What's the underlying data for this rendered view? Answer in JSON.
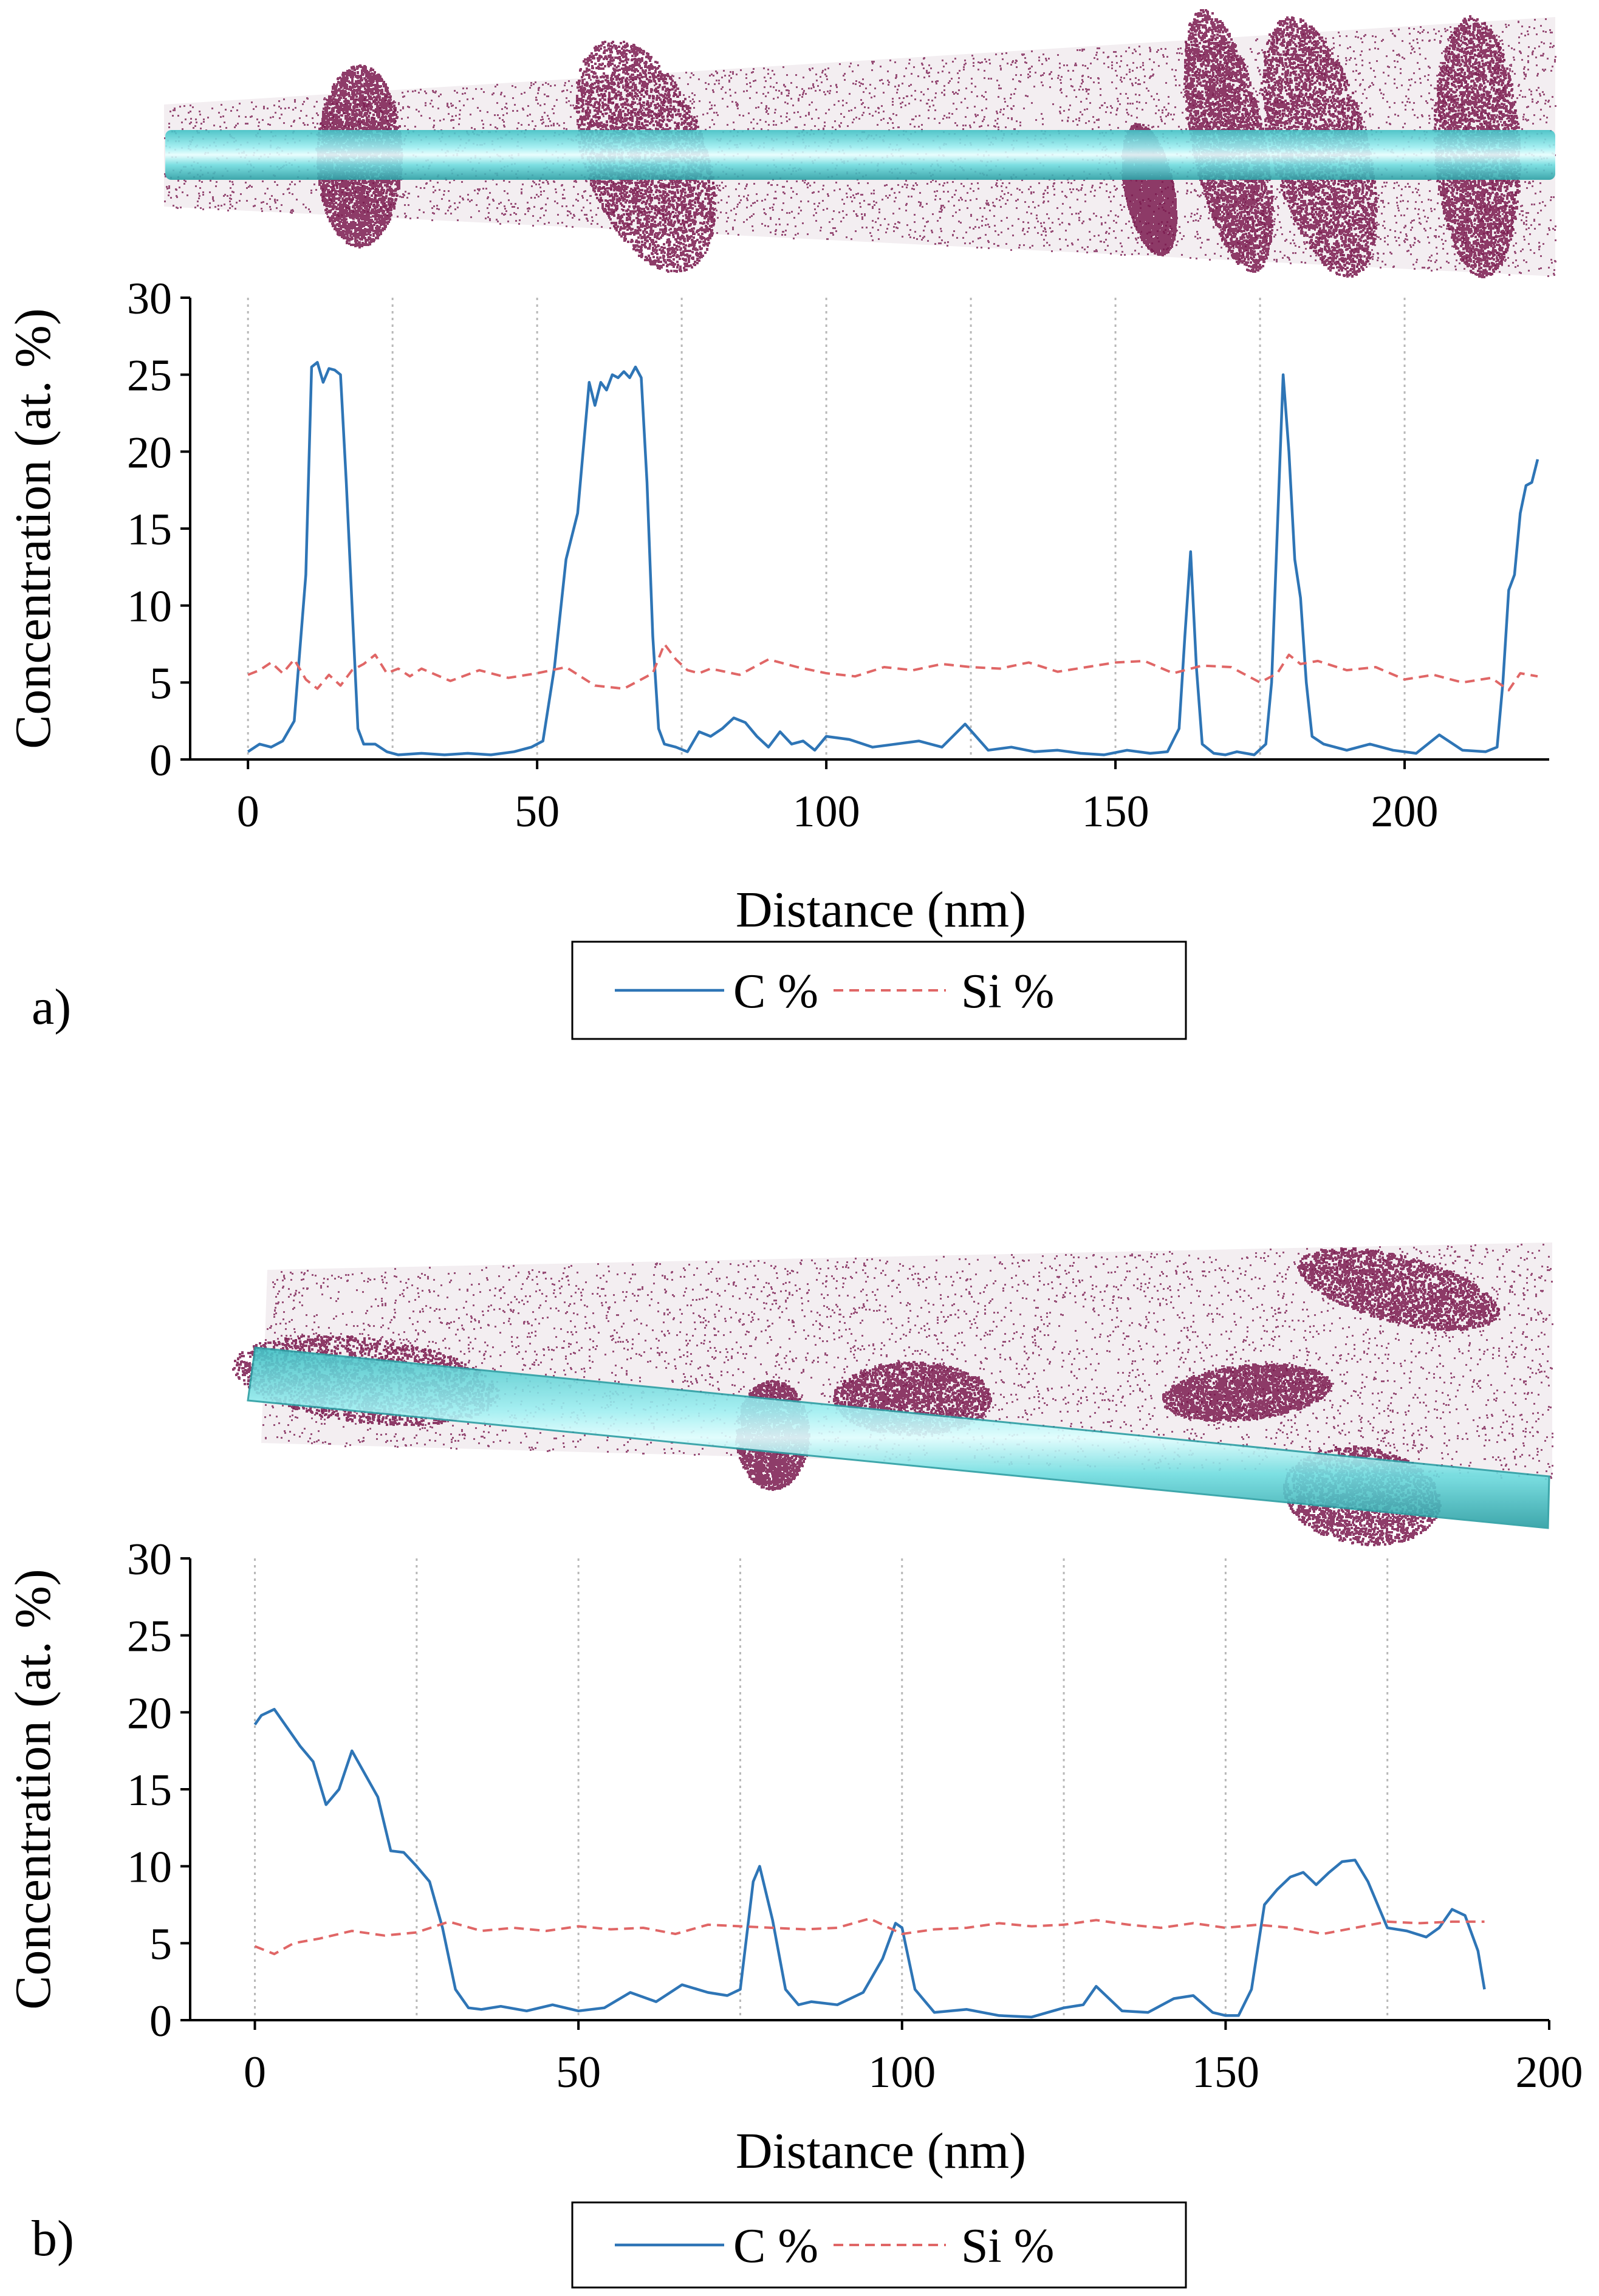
{
  "figure": {
    "panels": [
      "a)",
      "b)"
    ]
  },
  "colors": {
    "c_line": "#2e75b6",
    "si_line": "#e06666",
    "atoms": "#7a1a4f",
    "cylinder": "#5fdcdc"
  },
  "chart_data": [
    {
      "type": "line",
      "panel_label": "a)",
      "xlabel": "Distance (nm)",
      "ylabel": "Concentration (at. %)",
      "xlim": [
        -10,
        225
      ],
      "ylim": [
        0,
        30
      ],
      "xticks": [
        0,
        50,
        100,
        150,
        200
      ],
      "yticks": [
        0,
        5,
        10,
        15,
        20,
        25,
        30
      ],
      "xgrid": [
        0,
        25,
        50,
        75,
        100,
        125,
        150,
        175,
        200
      ],
      "legend": [
        "C %",
        "Si %"
      ],
      "series": [
        {
          "name": "C %",
          "style": "solid",
          "x": [
            0,
            2,
            4,
            6,
            8,
            10,
            11,
            12,
            13,
            14,
            15,
            16,
            17,
            18,
            19,
            20,
            22,
            24,
            26,
            30,
            34,
            38,
            42,
            46,
            49,
            51,
            53,
            55,
            57,
            59,
            60,
            61,
            62,
            63,
            64,
            65,
            66,
            67,
            68,
            69,
            70,
            71,
            72,
            74,
            76,
            78,
            80,
            82,
            84,
            86,
            88,
            90,
            92,
            94,
            96,
            98,
            100,
            104,
            108,
            112,
            116,
            120,
            124,
            128,
            132,
            136,
            140,
            144,
            148,
            152,
            156,
            159,
            161,
            162,
            163,
            164,
            165,
            167,
            169,
            171,
            174,
            176,
            177,
            178,
            179,
            180,
            181,
            182,
            183,
            184,
            186,
            190,
            194,
            198,
            202,
            206,
            210,
            214,
            216,
            217,
            218,
            219,
            220,
            221,
            222,
            223
          ],
          "values": [
            0.5,
            1.0,
            0.8,
            1.2,
            2.5,
            12.0,
            25.5,
            25.8,
            24.5,
            25.4,
            25.3,
            25.0,
            18.0,
            10.0,
            2.0,
            1.0,
            1.0,
            0.5,
            0.3,
            0.4,
            0.3,
            0.4,
            0.3,
            0.5,
            0.8,
            1.2,
            6.0,
            13.0,
            16.0,
            24.5,
            23.0,
            24.5,
            24.0,
            25.0,
            24.8,
            25.2,
            24.8,
            25.5,
            24.8,
            18.0,
            8.0,
            2.0,
            1.0,
            0.8,
            0.5,
            1.8,
            1.5,
            2.0,
            2.7,
            2.4,
            1.5,
            0.8,
            1.8,
            1.0,
            1.2,
            0.6,
            1.5,
            1.3,
            0.8,
            1.0,
            1.2,
            0.8,
            2.3,
            0.6,
            0.8,
            0.5,
            0.6,
            0.4,
            0.3,
            0.6,
            0.4,
            0.5,
            2.0,
            8.0,
            13.5,
            6.0,
            1.0,
            0.4,
            0.3,
            0.5,
            0.3,
            1.0,
            5.0,
            15.0,
            25.0,
            20.0,
            13.0,
            10.5,
            5.0,
            1.5,
            1.0,
            0.6,
            1.0,
            0.6,
            0.4,
            1.6,
            0.6,
            0.5,
            0.8,
            5.0,
            11.0,
            12.0,
            16.0,
            17.8,
            18.0,
            19.5
          ]
        },
        {
          "name": "Si %",
          "style": "dashed",
          "x": [
            0,
            2,
            4,
            6,
            8,
            10,
            12,
            14,
            16,
            18,
            20,
            22,
            24,
            26,
            28,
            30,
            35,
            40,
            45,
            50,
            55,
            60,
            65,
            68,
            70,
            72,
            74,
            76,
            78,
            80,
            85,
            90,
            95,
            100,
            105,
            110,
            115,
            120,
            125,
            130,
            135,
            140,
            145,
            150,
            155,
            160,
            165,
            170,
            175,
            178,
            180,
            182,
            185,
            190,
            195,
            200,
            205,
            210,
            215,
            218,
            220,
            223
          ],
          "values": [
            5.5,
            5.8,
            6.3,
            5.6,
            6.5,
            5.2,
            4.6,
            5.5,
            4.8,
            5.8,
            6.2,
            6.8,
            5.6,
            5.9,
            5.4,
            5.9,
            5.1,
            5.8,
            5.3,
            5.6,
            6.0,
            4.8,
            4.6,
            5.2,
            5.6,
            7.5,
            6.5,
            5.8,
            5.6,
            5.9,
            5.5,
            6.5,
            6.0,
            5.6,
            5.4,
            6.0,
            5.8,
            6.2,
            6.0,
            5.9,
            6.3,
            5.7,
            6.0,
            6.3,
            6.4,
            5.6,
            6.1,
            6.0,
            5.0,
            5.6,
            6.8,
            6.2,
            6.4,
            5.8,
            6.0,
            5.2,
            5.5,
            5.0,
            5.3,
            4.5,
            5.6,
            5.4
          ]
        }
      ]
    },
    {
      "type": "line",
      "panel_label": "b)",
      "xlabel": "Distance (nm)",
      "ylabel": "Concentration (at. %)",
      "xlim": [
        -10,
        200
      ],
      "ylim": [
        0,
        30
      ],
      "xticks": [
        0,
        50,
        100,
        150,
        200
      ],
      "yticks": [
        0,
        5,
        10,
        15,
        20,
        25,
        30
      ],
      "xgrid": [
        0,
        25,
        50,
        75,
        100,
        125,
        150,
        175
      ],
      "legend": [
        "C %",
        "Si %"
      ],
      "series": [
        {
          "name": "C %",
          "style": "solid",
          "x": [
            0,
            1,
            3,
            5,
            7,
            9,
            11,
            13,
            15,
            17,
            19,
            21,
            23,
            25,
            27,
            29,
            31,
            33,
            35,
            38,
            42,
            46,
            50,
            54,
            58,
            62,
            66,
            70,
            73,
            75,
            77,
            78,
            80,
            82,
            84,
            86,
            90,
            94,
            97,
            99,
            100,
            102,
            105,
            110,
            115,
            120,
            125,
            128,
            130,
            134,
            138,
            142,
            145,
            148,
            150,
            152,
            154,
            156,
            158,
            160,
            162,
            164,
            166,
            168,
            170,
            172,
            175,
            178,
            181,
            183,
            185,
            187,
            189,
            190
          ],
          "values": [
            19.2,
            19.8,
            20.2,
            19.0,
            17.8,
            16.8,
            14.0,
            15.0,
            17.5,
            16.0,
            14.5,
            11.0,
            10.9,
            10.0,
            9.0,
            6.0,
            2.0,
            0.8,
            0.7,
            0.9,
            0.6,
            1.0,
            0.6,
            0.8,
            1.8,
            1.2,
            2.3,
            1.8,
            1.6,
            2.0,
            9.0,
            10.0,
            6.5,
            2.0,
            1.0,
            1.2,
            1.0,
            1.8,
            4.0,
            6.3,
            6.0,
            2.0,
            0.5,
            0.7,
            0.3,
            0.2,
            0.8,
            1.0,
            2.2,
            0.6,
            0.5,
            1.4,
            1.6,
            0.5,
            0.3,
            0.3,
            2.0,
            7.5,
            8.5,
            9.3,
            9.6,
            8.8,
            9.6,
            10.3,
            10.4,
            9.0,
            6.0,
            5.8,
            5.4,
            6.0,
            7.2,
            6.8,
            4.5,
            2.0
          ]
        },
        {
          "name": "Si %",
          "style": "dashed",
          "x": [
            0,
            3,
            6,
            10,
            15,
            20,
            25,
            30,
            35,
            40,
            45,
            50,
            55,
            60,
            65,
            70,
            75,
            80,
            85,
            90,
            95,
            100,
            105,
            110,
            115,
            120,
            125,
            130,
            135,
            140,
            145,
            150,
            155,
            160,
            165,
            170,
            175,
            180,
            185,
            190
          ],
          "values": [
            4.8,
            4.3,
            5.0,
            5.3,
            5.8,
            5.5,
            5.7,
            6.4,
            5.8,
            6.0,
            5.8,
            6.1,
            5.9,
            6.0,
            5.6,
            6.2,
            6.1,
            6.0,
            5.9,
            6.0,
            6.6,
            5.6,
            5.9,
            6.0,
            6.3,
            6.1,
            6.2,
            6.5,
            6.2,
            6.0,
            6.3,
            6.0,
            6.2,
            6.0,
            5.6,
            6.0,
            6.4,
            6.3,
            6.4,
            6.4
          ]
        }
      ]
    }
  ]
}
